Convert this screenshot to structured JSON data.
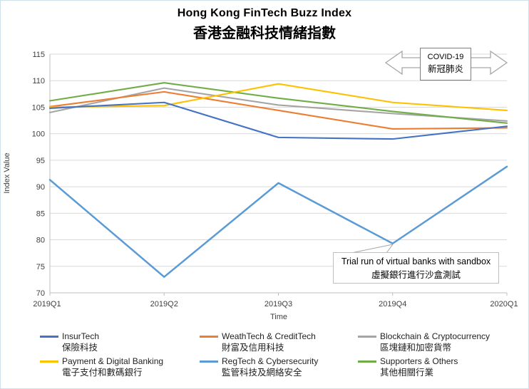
{
  "title": {
    "en": "Hong Kong FinTech Buzz Index",
    "zh": "香港金融科技情緒指數"
  },
  "chart_data": {
    "type": "line",
    "title": "Hong Kong FinTech Buzz Index 香港金融科技情緒指數",
    "xlabel": "Time",
    "ylabel": "Index Value",
    "ylim": [
      70,
      115
    ],
    "y_ticks": [
      70,
      75,
      80,
      85,
      90,
      95,
      100,
      105,
      110,
      115
    ],
    "grid": true,
    "legend_position": "bottom",
    "categories": [
      "2019Q1",
      "2019Q2",
      "2019Q3",
      "2019Q4",
      "2020Q1"
    ],
    "series": [
      {
        "name": "InsurTech",
        "name_zh": "保險科技",
        "color": "#4472C4",
        "values": [
          104.8,
          105.9,
          99.3,
          99.0,
          101.4
        ]
      },
      {
        "name": "WeathTech & CreditTech",
        "name_zh": "財富及信用科技",
        "color": "#ED7D31",
        "values": [
          105.1,
          107.9,
          104.4,
          100.9,
          101.1
        ]
      },
      {
        "name": "Blockchain & Cryptocurrency",
        "name_zh": "區塊鏈和加密貨幣",
        "color": "#A5A5A5",
        "values": [
          104.0,
          108.6,
          105.4,
          103.8,
          102.4
        ]
      },
      {
        "name": "Payment & Digital Banking",
        "name_zh": "電子支付和數碼銀行",
        "color": "#FFC000",
        "values": [
          105.0,
          105.3,
          109.4,
          105.9,
          104.4
        ]
      },
      {
        "name": "RegTech & Cybersecurity",
        "name_zh": "監管科技及網絡安全",
        "color": "#5B9BD5",
        "values": [
          91.3,
          73.0,
          90.7,
          79.3,
          93.8
        ]
      },
      {
        "name": "Supporters & Others",
        "name_zh": "其他相關行業",
        "color": "#70AD47",
        "values": [
          106.2,
          109.6,
          106.7,
          104.2,
          102.0
        ]
      }
    ],
    "annotations": [
      {
        "id": "covid",
        "line1": "COVID-19",
        "line2": "新冠肺炎"
      },
      {
        "id": "sandbox",
        "line1": "Trial run of virtual banks with sandbox",
        "line2": "虛擬銀行進行沙盒測試",
        "points_to": {
          "category": "2019Q4",
          "series": "RegTech & Cybersecurity",
          "value": 79.3
        }
      }
    ]
  }
}
